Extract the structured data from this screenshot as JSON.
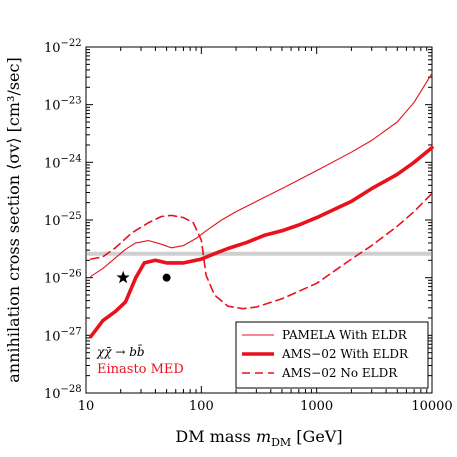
{
  "chart_data": {
    "type": "line",
    "xlabel": "DM mass m_DM [GeV]",
    "xlabel_main": "DM mass ",
    "xlabel_var": "m",
    "xlabel_sub": "DM",
    "xlabel_unit": " [GeV]",
    "ylabel": "annihilation cross section ⟨σv⟩ [cm³/sec]",
    "x_scale": "log",
    "y_scale": "log",
    "xlim": [
      10,
      10000
    ],
    "ylim": [
      1e-28,
      1e-22
    ],
    "x_ticks": [
      {
        "value": 10,
        "label": "10"
      },
      {
        "value": 100,
        "label": "100"
      },
      {
        "value": 1000,
        "label": "1000"
      },
      {
        "value": 10000,
        "label": "10000"
      }
    ],
    "y_ticks": [
      {
        "value": 1e-22,
        "exp": "-22"
      },
      {
        "value": 1e-23,
        "exp": "-23"
      },
      {
        "value": 1e-24,
        "exp": "-24"
      },
      {
        "value": 1e-25,
        "exp": "-25"
      },
      {
        "value": 1e-26,
        "exp": "-26"
      },
      {
        "value": 1e-27,
        "exp": "-27"
      },
      {
        "value": 1e-28,
        "exp": "-28"
      }
    ],
    "thermal_line": {
      "y": 2.6e-26,
      "color": "#cfcfcf"
    },
    "series": [
      {
        "name": "PAMELA With ELDR",
        "style": "thin",
        "color": "#e8111c",
        "points": [
          [
            11,
            1.05e-26
          ],
          [
            14,
            1.45e-26
          ],
          [
            18,
            2.2e-26
          ],
          [
            22,
            3.1e-26
          ],
          [
            27,
            4e-26
          ],
          [
            35,
            4.4e-26
          ],
          [
            45,
            3.8e-26
          ],
          [
            55,
            3.3e-26
          ],
          [
            70,
            3.6e-26
          ],
          [
            90,
            4.8e-26
          ],
          [
            110,
            6.5e-26
          ],
          [
            150,
            1e-25
          ],
          [
            200,
            1.4e-25
          ],
          [
            300,
            2.1e-25
          ],
          [
            500,
            3.5e-25
          ],
          [
            1000,
            7.2e-25
          ],
          [
            2000,
            1.5e-24
          ],
          [
            3000,
            2.4e-24
          ],
          [
            5000,
            5e-24
          ],
          [
            7000,
            1.1e-23
          ],
          [
            10000,
            3.5e-23
          ]
        ]
      },
      {
        "name": "AMS−02 With ELDR",
        "style": "thick",
        "color": "#e8111c",
        "points": [
          [
            11,
            9.5e-28
          ],
          [
            14,
            1.8e-27
          ],
          [
            18,
            2.6e-27
          ],
          [
            22,
            3.8e-27
          ],
          [
            27,
            1e-26
          ],
          [
            32,
            1.8e-26
          ],
          [
            40,
            2e-26
          ],
          [
            50,
            1.8e-26
          ],
          [
            70,
            1.8e-26
          ],
          [
            100,
            2.1e-26
          ],
          [
            130,
            2.6e-26
          ],
          [
            170,
            3.2e-26
          ],
          [
            250,
            4.1e-26
          ],
          [
            350,
            5.4e-26
          ],
          [
            500,
            6.5e-26
          ],
          [
            700,
            8.2e-26
          ],
          [
            1000,
            1.1e-25
          ],
          [
            2000,
            2.1e-25
          ],
          [
            3000,
            3.5e-25
          ],
          [
            5000,
            6.2e-25
          ],
          [
            7000,
            1e-24
          ],
          [
            10000,
            1.8e-24
          ]
        ]
      },
      {
        "name": "AMS−02 No ELDR",
        "style": "dashed",
        "color": "#e8111c",
        "points": [
          [
            11,
            2.1e-26
          ],
          [
            14,
            2.3e-26
          ],
          [
            18,
            3.3e-26
          ],
          [
            25,
            6e-26
          ],
          [
            35,
            9e-26
          ],
          [
            45,
            1.15e-25
          ],
          [
            55,
            1.2e-25
          ],
          [
            70,
            1.1e-25
          ],
          [
            85,
            9e-26
          ],
          [
            100,
            4.5e-26
          ],
          [
            110,
            1.1e-26
          ],
          [
            130,
            5e-27
          ],
          [
            170,
            3.2e-27
          ],
          [
            230,
            2.9e-27
          ],
          [
            300,
            3.1e-27
          ],
          [
            500,
            4.3e-27
          ],
          [
            700,
            5.8e-27
          ],
          [
            1000,
            8e-27
          ],
          [
            2000,
            2.1e-26
          ],
          [
            3000,
            3.6e-26
          ],
          [
            5000,
            7.8e-26
          ],
          [
            7000,
            1.4e-25
          ],
          [
            10000,
            2.9e-25
          ]
        ]
      }
    ],
    "markers": [
      {
        "name": "star-marker",
        "symbol": "star",
        "x": 21,
        "y": 1e-26
      },
      {
        "name": "dot-marker",
        "symbol": "circle",
        "x": 50,
        "y": 1e-26
      }
    ],
    "annotation_process": "χχ̄ → bb̄",
    "annotation_profile": "Einasto MED",
    "legend": {
      "placement": "bottom-right",
      "entries": [
        "PAMELA With ELDR",
        "AMS−02 With ELDR",
        "AMS−02 No ELDR"
      ]
    }
  }
}
